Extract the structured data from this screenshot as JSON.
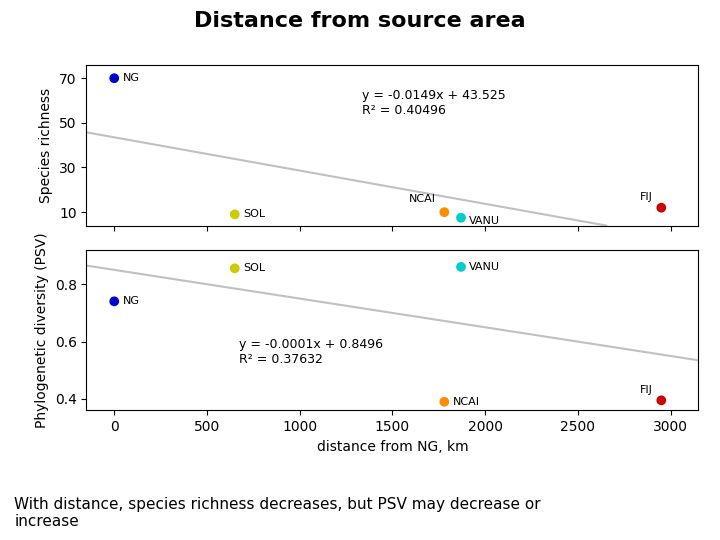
{
  "chart_data": [
    {
      "type": "scatter",
      "title": "Distance from source area",
      "x": [
        0,
        650,
        1780,
        1870,
        2950
      ],
      "values": [
        70,
        9,
        10,
        7.5,
        12
      ],
      "point_labels": [
        "NG",
        "SOL",
        "NCAI",
        "VANU",
        "FIJ"
      ],
      "colors": [
        "#0000CC",
        "#CCCC00",
        "#FF8C00",
        "#00CCCC",
        "#CC0000"
      ],
      "ylabel": "Species richness",
      "xlim": [
        -150,
        3150
      ],
      "xticks": [
        0,
        500,
        1000,
        1500,
        2000,
        2500,
        3000
      ],
      "ylim": [
        4,
        76
      ],
      "yticks": [
        10,
        30,
        50,
        70
      ],
      "trend": {
        "slope": -0.0149,
        "intercept": 43.525,
        "color": "#C0C0C0"
      },
      "annotations": [
        "y = -0.0149x + 43.525",
        "R² = 0.40496"
      ],
      "tick_labels": "y",
      "grid": false
    },
    {
      "type": "scatter",
      "subtitle": "With distance, species richness decreases, but PSV may decrease or\nincrease",
      "xlabel": "distance from NG, km",
      "x": [
        0,
        650,
        1780,
        1870,
        2950
      ],
      "values": [
        0.74,
        0.855,
        0.39,
        0.86,
        0.395
      ],
      "point_labels": [
        "NG",
        "SOL",
        "NCAI",
        "VANU",
        "FIJ"
      ],
      "colors": [
        "#0000CC",
        "#CCCC00",
        "#FF8C00",
        "#00CCCC",
        "#CC0000"
      ],
      "ylabel": "Phylogenetic diversity (PSV)",
      "xlim": [
        -150,
        3150
      ],
      "xticks": [
        0,
        500,
        1000,
        1500,
        2000,
        2500,
        3000
      ],
      "ylim": [
        0.36,
        0.92
      ],
      "yticks": [
        0.4,
        0.6,
        0.8
      ],
      "trend": {
        "slope": -0.0001,
        "intercept": 0.8496,
        "color": "#C0C0C0"
      },
      "annotations": [
        "y = -0.0001x + 0.8496",
        "R² = 0.37632"
      ],
      "grid": false
    }
  ]
}
